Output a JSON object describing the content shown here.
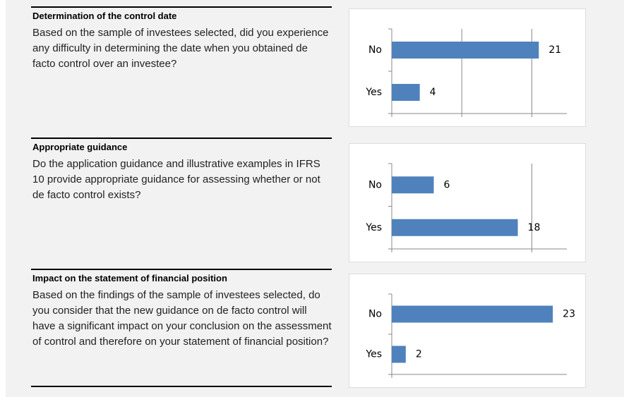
{
  "sections": [
    {
      "title": "Determination of the control date",
      "question": "Based on the sample of investees selected, did you experience any difficulty in determining the date when you obtained de facto control over an investee?",
      "chart_data": {
        "type": "bar",
        "orientation": "horizontal",
        "categories": [
          "No",
          "Yes"
        ],
        "values": [
          21,
          4
        ],
        "color": "#4f81bd",
        "xlim": [
          0,
          25
        ],
        "xticks": [
          0,
          10,
          20
        ],
        "grid": true
      }
    },
    {
      "title": "Appropriate guidance",
      "question": "Do the application guidance and illustrative examples in IFRS 10 provide appropriate guidance for assessing whether or not de facto control exists?",
      "chart_data": {
        "type": "bar",
        "orientation": "horizontal",
        "categories": [
          "No",
          "Yes"
        ],
        "values": [
          6,
          18
        ],
        "color": "#4f81bd",
        "xlim": [
          0,
          25
        ],
        "xticks": [
          0,
          20
        ],
        "grid": true
      }
    },
    {
      "title": "Impact on the statement of financial position",
      "question": "Based on the findings of the sample of investees selected, do you consider that the new guidance on de facto control will have a significant impact on your conclusion on the assessment of control and therefore on your statement of financial position?",
      "chart_data": {
        "type": "bar",
        "orientation": "horizontal",
        "categories": [
          "No",
          "Yes"
        ],
        "values": [
          23,
          2
        ],
        "color": "#4f81bd",
        "xlim": [
          0,
          25
        ],
        "xticks": [
          0
        ],
        "grid": true
      }
    }
  ]
}
